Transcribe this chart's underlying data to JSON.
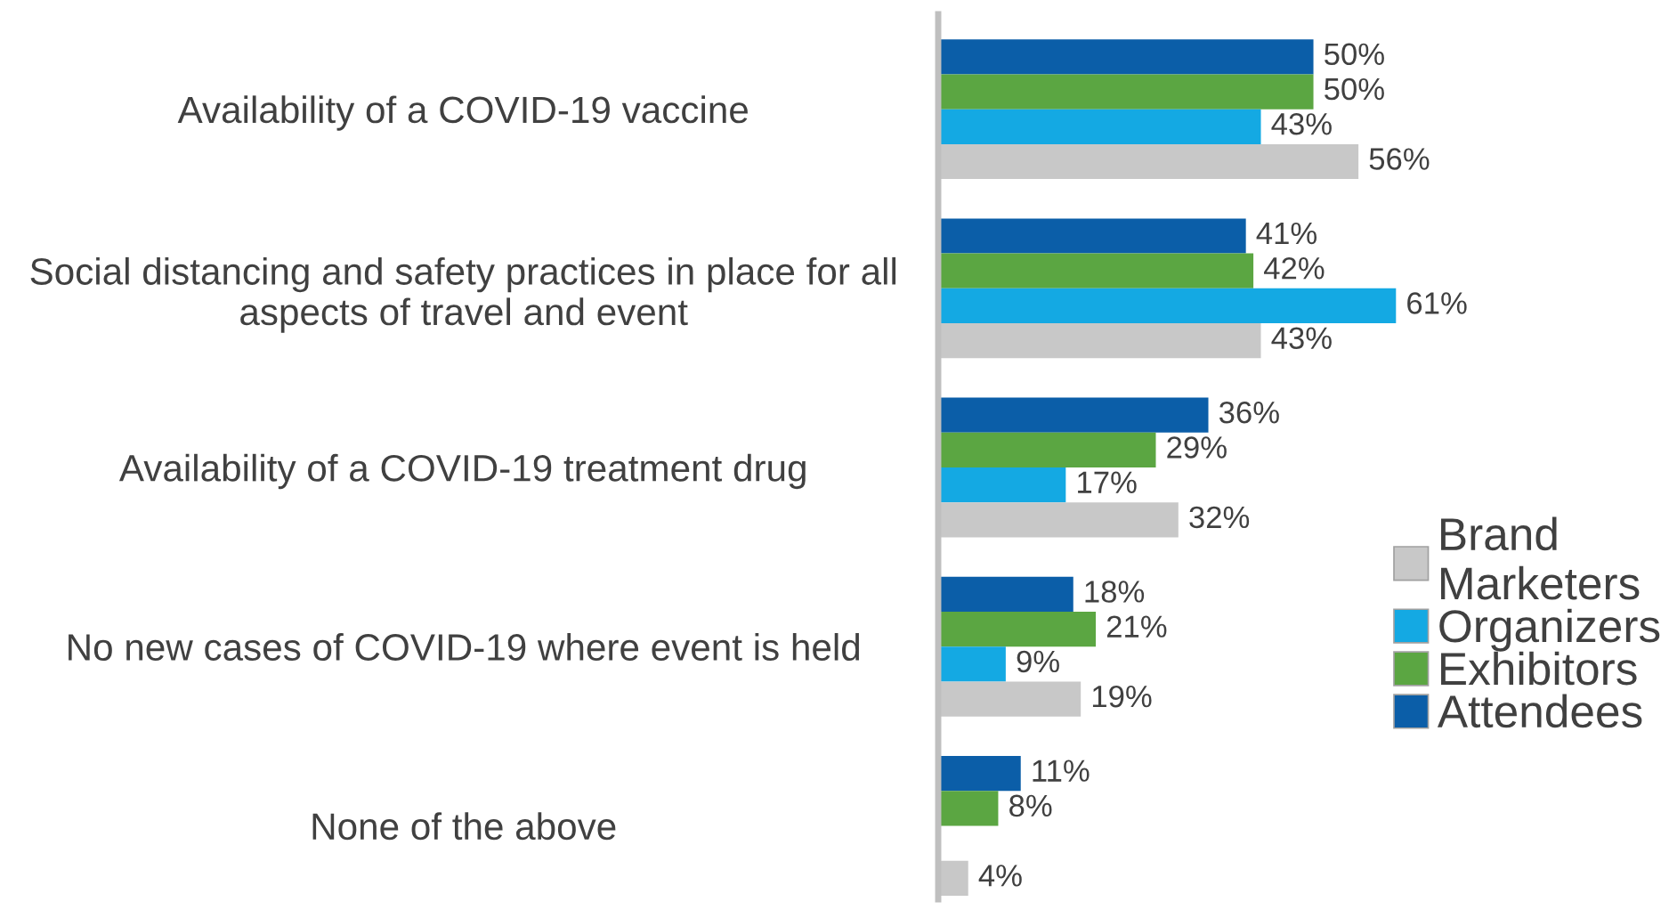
{
  "chart_data": {
    "type": "bar",
    "orientation": "horizontal",
    "categories": [
      "Availability of a COVID-19 vaccine",
      "Social distancing and safety practices in place for all\naspects of travel and event",
      "Availability of a COVID-19 treatment drug",
      "No new cases of COVID-19 where event is held",
      "None of the above"
    ],
    "series": [
      {
        "name": "Attendees",
        "color": "#0b5ea8",
        "values": [
          50,
          41,
          36,
          18,
          11
        ],
        "value_labels": [
          "50%",
          "41%",
          "36%",
          "18%",
          "11%"
        ]
      },
      {
        "name": "Exhibitors",
        "color": "#5ba642",
        "values": [
          50,
          42,
          29,
          21,
          8
        ],
        "value_labels": [
          "50%",
          "42%",
          "29%",
          "21%",
          "8%"
        ]
      },
      {
        "name": "Organizers",
        "color": "#14a9e3",
        "values": [
          43,
          61,
          17,
          9,
          null
        ],
        "value_labels": [
          "43%",
          "61%",
          "17%",
          "9%",
          null
        ]
      },
      {
        "name": "Brand\nMarketers",
        "color": "#c8c8c8",
        "values": [
          56,
          43,
          32,
          19,
          4
        ],
        "value_labels": [
          "56%",
          "43%",
          "32%",
          "19%",
          "4%"
        ]
      }
    ],
    "tick_labels": "y",
    "legend": "right"
  }
}
